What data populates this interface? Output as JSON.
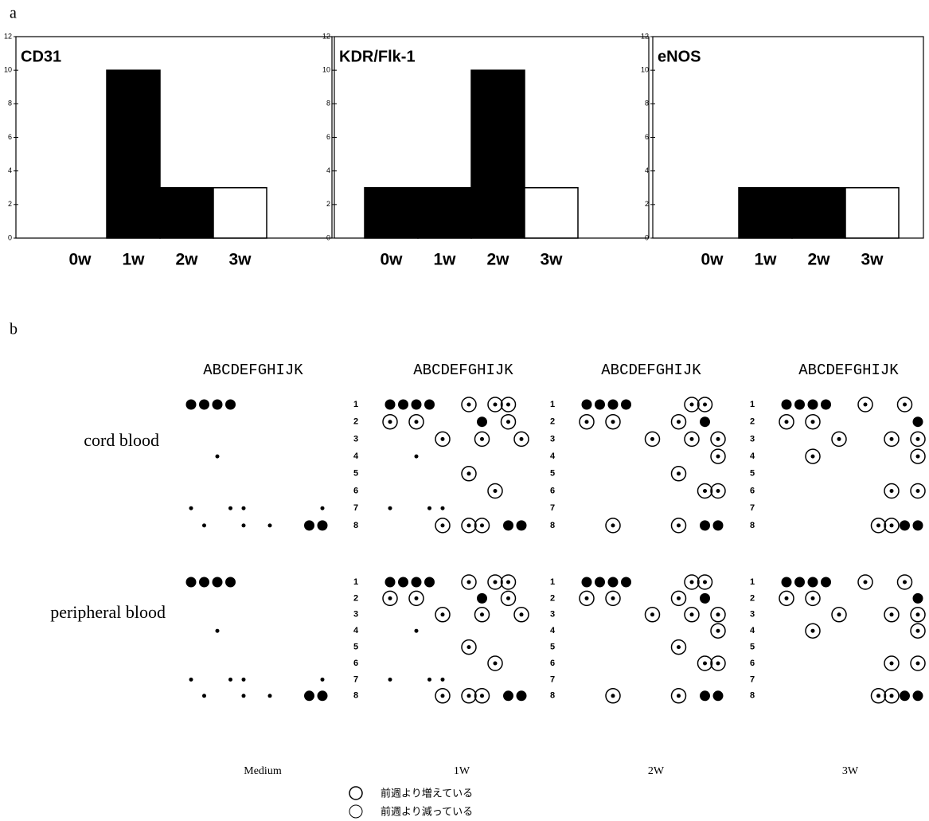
{
  "panel_a_label": "a",
  "chart_data": [
    {
      "type": "bar",
      "title": "CD31",
      "categories": [
        "0w",
        "1w",
        "2w",
        "3w"
      ],
      "values": [
        0,
        10,
        3,
        3
      ],
      "colors": [
        "#000000",
        "#000000",
        "#000000",
        "#ffffff"
      ],
      "ylim": [
        0,
        12
      ],
      "yticks": [
        0,
        2,
        4,
        6,
        8,
        10,
        12
      ]
    },
    {
      "type": "bar",
      "title": "KDR/Flk-1",
      "categories": [
        "0w",
        "1w",
        "2w",
        "3w"
      ],
      "values": [
        3,
        3,
        10,
        3
      ],
      "colors": [
        "#000000",
        "#000000",
        "#000000",
        "#ffffff"
      ],
      "ylim": [
        0,
        12
      ],
      "yticks": [
        0,
        2,
        4,
        6,
        8,
        10,
        12
      ]
    },
    {
      "type": "bar",
      "title": "eNOS",
      "categories": [
        "0w",
        "1w",
        "2w",
        "3w"
      ],
      "values": [
        0,
        3,
        3,
        3
      ],
      "colors": [
        "#000000",
        "#000000",
        "#000000",
        "#ffffff"
      ],
      "ylim": [
        0,
        12
      ],
      "yticks": [
        0,
        2,
        4,
        6,
        8,
        10,
        12
      ]
    }
  ],
  "panel_b": {
    "label": "b",
    "column_header": "ABCDEFGHIJK",
    "row_numbers": [
      "1",
      "2",
      "3",
      "4",
      "5",
      "6",
      "7",
      "8"
    ],
    "rows": [
      "cord blood",
      "peripheral blood"
    ],
    "columns": [
      "Medium",
      "1W",
      "2W",
      "3W"
    ],
    "legend": [
      "前週より増えている",
      "前週より減っている"
    ]
  }
}
